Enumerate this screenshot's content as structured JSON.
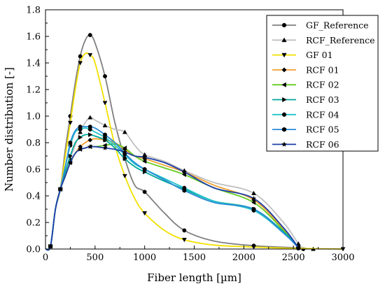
{
  "chart_data": {
    "type": "line",
    "title": "",
    "xlabel": "Fiber length  [µm]",
    "ylabel": "Number distribution [-]",
    "xlim": [
      0,
      3000
    ],
    "ylim": [
      0,
      1.8
    ],
    "xticks": [
      0,
      500,
      1000,
      1500,
      2000,
      2500,
      3000
    ],
    "yticks": [
      0.0,
      0.2,
      0.4,
      0.6,
      0.8,
      1.0,
      1.2,
      1.4,
      1.6,
      1.8
    ],
    "xtick_labels": [
      "0",
      "500",
      "1000",
      "1500",
      "2000",
      "2500",
      "3000"
    ],
    "ytick_labels": [
      "0.0",
      "0.2",
      "0.4",
      "0.6",
      "0.8",
      "1.0",
      "1.2",
      "1.4",
      "1.6",
      "1.8"
    ],
    "grid": false,
    "legend_position": "top-right",
    "series": [
      {
        "name": "GF_Reference",
        "color": "#7f7f7f",
        "marker": "circle",
        "x": [
          0,
          50,
          100,
          150,
          200,
          250,
          300,
          350,
          400,
          450,
          500,
          600,
          700,
          800,
          900,
          1000,
          1200,
          1400,
          1700,
          2100,
          2500,
          2550,
          2600
        ],
        "y": [
          0,
          0.02,
          0.3,
          0.45,
          0.75,
          1.0,
          1.25,
          1.45,
          1.57,
          1.61,
          1.55,
          1.3,
          0.95,
          0.68,
          0.48,
          0.43,
          0.27,
          0.14,
          0.06,
          0.025,
          0.01,
          0.005,
          0
        ]
      },
      {
        "name": "RCF_Reference",
        "color": "#c0c0c0",
        "marker": "triangle-up",
        "x": [
          0,
          50,
          100,
          150,
          200,
          250,
          300,
          350,
          400,
          450,
          500,
          600,
          700,
          800,
          900,
          1000,
          1200,
          1400,
          1700,
          2100,
          2400,
          2550,
          2600,
          2700
        ],
        "y": [
          0,
          0.02,
          0.3,
          0.45,
          0.55,
          0.68,
          0.78,
          0.88,
          0.95,
          0.99,
          0.97,
          0.93,
          0.9,
          0.88,
          0.78,
          0.71,
          0.66,
          0.59,
          0.5,
          0.42,
          0.2,
          0.04,
          0.01,
          0
        ]
      },
      {
        "name": "GF 01",
        "color": "#f2e000",
        "marker": "triangle-down",
        "x": [
          0,
          50,
          100,
          150,
          200,
          250,
          300,
          350,
          400,
          450,
          500,
          600,
          700,
          800,
          900,
          1000,
          1200,
          1400,
          1700,
          2100,
          2500,
          3000
        ],
        "y": [
          0,
          0.02,
          0.3,
          0.45,
          0.7,
          0.95,
          1.2,
          1.4,
          1.47,
          1.46,
          1.4,
          1.1,
          0.78,
          0.55,
          0.38,
          0.27,
          0.14,
          0.07,
          0.03,
          0.015,
          0.005,
          0
        ]
      },
      {
        "name": "RCF 01",
        "color": "#f0a030",
        "marker": "diamond",
        "x": [
          0,
          50,
          100,
          150,
          200,
          250,
          300,
          350,
          400,
          450,
          500,
          600,
          700,
          800,
          900,
          1000,
          1200,
          1400,
          1700,
          2100,
          2400,
          2550
        ],
        "y": [
          0,
          0.02,
          0.3,
          0.45,
          0.55,
          0.65,
          0.72,
          0.77,
          0.8,
          0.82,
          0.83,
          0.82,
          0.8,
          0.75,
          0.7,
          0.68,
          0.63,
          0.58,
          0.48,
          0.37,
          0.15,
          0.01
        ]
      },
      {
        "name": "RCF 02",
        "color": "#66cc22",
        "marker": "triangle-left",
        "x": [
          0,
          50,
          100,
          150,
          200,
          250,
          300,
          350,
          400,
          450,
          500,
          600,
          700,
          800,
          900,
          1000,
          1200,
          1400,
          1700,
          2100,
          2400,
          2550
        ],
        "y": [
          0,
          0.02,
          0.3,
          0.45,
          0.55,
          0.65,
          0.72,
          0.75,
          0.76,
          0.77,
          0.77,
          0.78,
          0.79,
          0.76,
          0.7,
          0.66,
          0.61,
          0.56,
          0.46,
          0.35,
          0.14,
          0.01
        ]
      },
      {
        "name": "RCF 03",
        "color": "#00a89a",
        "marker": "triangle-right",
        "x": [
          0,
          50,
          100,
          150,
          200,
          250,
          300,
          350,
          400,
          450,
          500,
          600,
          700,
          800,
          900,
          1000,
          1200,
          1400,
          1700,
          2100,
          2400,
          2550
        ],
        "y": [
          0,
          0.02,
          0.3,
          0.45,
          0.58,
          0.7,
          0.8,
          0.84,
          0.86,
          0.86,
          0.85,
          0.82,
          0.76,
          0.68,
          0.62,
          0.58,
          0.51,
          0.45,
          0.36,
          0.3,
          0.13,
          0.01
        ]
      },
      {
        "name": "RCF 04",
        "color": "#22c4c8",
        "marker": "circle",
        "x": [
          0,
          50,
          100,
          150,
          200,
          250,
          300,
          350,
          400,
          450,
          500,
          600,
          700,
          800,
          900,
          1000,
          1200,
          1400,
          1700,
          2100,
          2400,
          2550
        ],
        "y": [
          0,
          0.02,
          0.3,
          0.45,
          0.62,
          0.78,
          0.88,
          0.9,
          0.91,
          0.9,
          0.88,
          0.84,
          0.78,
          0.71,
          0.64,
          0.6,
          0.53,
          0.46,
          0.36,
          0.29,
          0.12,
          0.01
        ]
      },
      {
        "name": "RCF 05",
        "color": "#2a8cd8",
        "marker": "hexagon",
        "x": [
          0,
          50,
          100,
          150,
          200,
          250,
          300,
          350,
          400,
          450,
          500,
          600,
          700,
          800,
          900,
          1000,
          1200,
          1400,
          1700,
          2100,
          2400,
          2550
        ],
        "y": [
          0,
          0.02,
          0.3,
          0.45,
          0.62,
          0.8,
          0.89,
          0.92,
          0.92,
          0.92,
          0.91,
          0.86,
          0.8,
          0.72,
          0.65,
          0.6,
          0.52,
          0.44,
          0.35,
          0.3,
          0.12,
          0.01
        ]
      },
      {
        "name": "RCF 06",
        "color": "#1e3ea8",
        "marker": "star",
        "x": [
          0,
          50,
          100,
          150,
          200,
          250,
          300,
          350,
          400,
          450,
          500,
          600,
          700,
          800,
          900,
          1000,
          1200,
          1400,
          1700,
          2100,
          2400,
          2550
        ],
        "y": [
          0,
          0.02,
          0.3,
          0.45,
          0.55,
          0.65,
          0.72,
          0.75,
          0.76,
          0.77,
          0.77,
          0.76,
          0.75,
          0.73,
          0.7,
          0.69,
          0.65,
          0.58,
          0.46,
          0.38,
          0.16,
          0.01
        ]
      }
    ]
  }
}
